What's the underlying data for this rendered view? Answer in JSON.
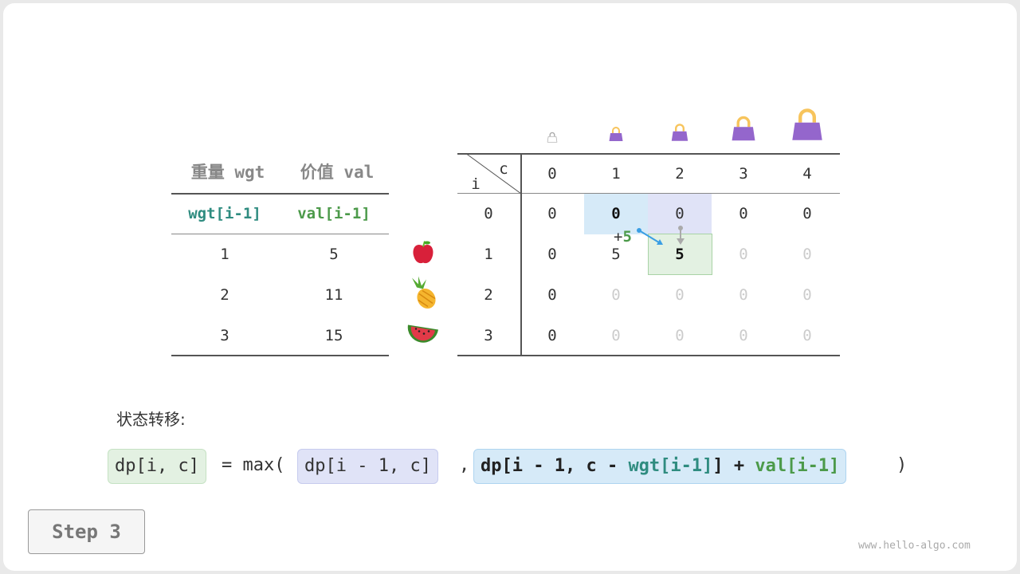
{
  "items_table": {
    "headers": [
      "重量 wgt",
      "价值 val"
    ],
    "subheaders": [
      "wgt[i-1]",
      "val[i-1]"
    ],
    "rows": [
      [
        "1",
        "5"
      ],
      [
        "2",
        "11"
      ],
      [
        "3",
        "15"
      ]
    ],
    "items": [
      "apple-icon",
      "pineapple-icon",
      "watermelon-icon"
    ]
  },
  "dp_table": {
    "corner_i": "i",
    "corner_c": "c",
    "col_headers": [
      "0",
      "1",
      "2",
      "3",
      "4"
    ],
    "row_headers": [
      "0",
      "1",
      "2",
      "3"
    ],
    "capacity_icons": [
      "bag-icon",
      "bag-icon",
      "bag-icon",
      "bag-icon",
      "bag-icon"
    ],
    "cells": [
      [
        {
          "v": "0",
          "s": "n"
        },
        {
          "v": "0",
          "s": "b"
        },
        {
          "v": "0",
          "s": "n"
        },
        {
          "v": "0",
          "s": "n"
        },
        {
          "v": "0",
          "s": "n"
        }
      ],
      [
        {
          "v": "0",
          "s": "n"
        },
        {
          "v": "5",
          "s": "n"
        },
        {
          "v": "5",
          "s": "b"
        },
        {
          "v": "0",
          "s": "f"
        },
        {
          "v": "0",
          "s": "f"
        }
      ],
      [
        {
          "v": "0",
          "s": "n"
        },
        {
          "v": "0",
          "s": "f"
        },
        {
          "v": "0",
          "s": "f"
        },
        {
          "v": "0",
          "s": "f"
        },
        {
          "v": "0",
          "s": "f"
        }
      ],
      [
        {
          "v": "0",
          "s": "n"
        },
        {
          "v": "0",
          "s": "f"
        },
        {
          "v": "0",
          "s": "f"
        },
        {
          "v": "0",
          "s": "f"
        },
        {
          "v": "0",
          "s": "f"
        }
      ]
    ],
    "annotation_plus": "+",
    "annotation_value": "5"
  },
  "transition": {
    "label": "状态转移:",
    "lhs": "dp[i, c]",
    "eq": "= max(",
    "opt1": "dp[i - 1, c]",
    "comma": ",",
    "opt2_a": "dp[i - 1, c - ",
    "opt2_wgt": "wgt[i-1]",
    "opt2_b": "] + ",
    "opt2_val": "val[i-1]",
    "close": ")"
  },
  "step_label": "Step 3",
  "watermark": "www.hello-algo.com",
  "colors": {
    "blue": "#d6eaf8",
    "purple": "#e0e3f7",
    "green": "#e3f1e2",
    "teal": "#2f8c80",
    "val_green": "#4c9a4a",
    "bag": "#9466cc",
    "handle": "#f7c45c"
  }
}
